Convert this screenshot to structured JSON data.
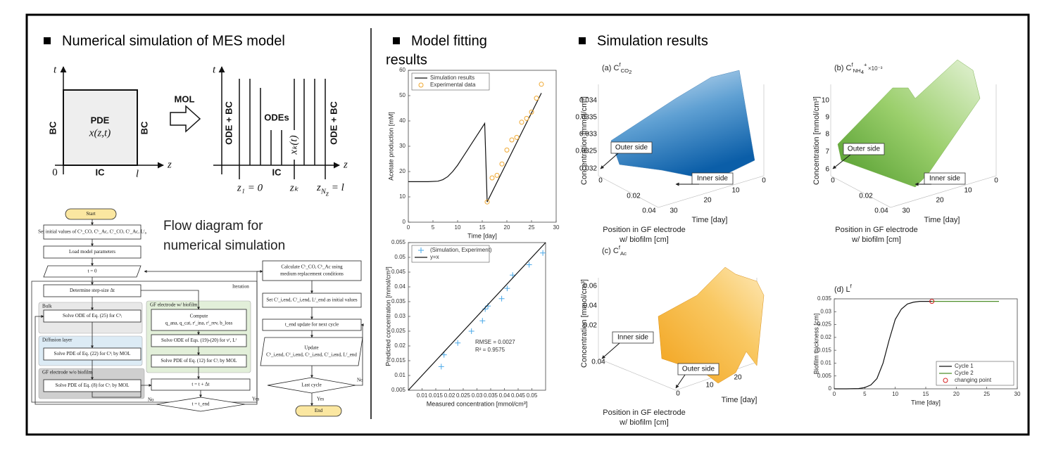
{
  "sections": {
    "simulation": {
      "title": "Numerical simulation of MES model"
    },
    "fitting": {
      "title_lines": [
        "Model fitting",
        "results"
      ]
    },
    "results": {
      "title": "Simulation results"
    }
  },
  "mol_diagram": {
    "left": {
      "t": "t",
      "z": "z",
      "pde": "PDE",
      "x": "x(z,t)",
      "bc_left": "BC",
      "bc_right": "BC",
      "ic": "IC",
      "zero": "0",
      "l": "l"
    },
    "arrow": "MOL",
    "right": {
      "t": "t",
      "z": "z",
      "ode_bc_left": "ODE + BC",
      "ode_bc_right": "ODE + BC",
      "odes": "ODEs",
      "xk": "xₖ(t)",
      "ic": "IC",
      "z1": "z₁ = 0",
      "zk": "zₖ",
      "zn": [
        {
          "t": "z"
        },
        {
          "t": "N",
          "v": "sub"
        },
        {
          "t": "z",
          "v": "sub2"
        },
        {
          "t": " = l"
        }
      ]
    }
  },
  "flow_diagram": {
    "title_lines": [
      "Flow diagram for",
      "numerical simulation"
    ],
    "nodes": [
      [
        "Start"
      ],
      [
        "Set initial values of Cᵇ_CO, Cᵇ_Ac, Cᶠ_CO, Cᶠ_Ac, Lᶠ₀"
      ],
      [
        "Load model parameters"
      ],
      [
        "t = 0"
      ],
      [
        "Determine step-size Δt"
      ],
      [
        "Solve ODE of Eq. (25) for Cᵇᵢ"
      ],
      [
        "Solve PDE of Eq. (22) for Cᵈᵢ by MOL"
      ],
      [
        "Solve PDE of Eq. (8) for Cᵉᵢ by MOL"
      ],
      [
        "Compute",
        "q_ana, q_cat, rᶠ_ina, rᶠ_rev, b_loss"
      ],
      [
        "Solve ODE of Eqs. (19)-(20) for vᶠ, Lᶠ"
      ],
      [
        "Solve PDE of Eq. (12) for Cᶠᵢ by MOL"
      ],
      [
        "t = t + Δt"
      ],
      [
        "t = t_end"
      ],
      [
        "Calculate Cᵇ_CO, Cᵇ_Ac using",
        "medium replacement conditions"
      ],
      [
        "Set Cᶠ_i,end, Cᶠ_i,end, Lᶠ_end as initial values"
      ],
      [
        "t_end update for next cycle"
      ],
      [
        "Update",
        "Cᵇ_i,end, Cᵈ_i,end, Cᵉ_i,end, Cᶠ_i,end, Lᶠ_end"
      ],
      [
        "Last cycle"
      ],
      [
        "End"
      ]
    ],
    "groups": [
      "Bulk",
      "Diffusion layer",
      "GF electrode w/o biofilm",
      "GF electrode w/ biofilm",
      "Iteration"
    ],
    "branches": [
      "No",
      "Yes",
      "No",
      "Yes"
    ]
  },
  "surface_panels": [
    {
      "label": [
        {
          "t": "(a) C"
        },
        {
          "t": "f",
          "v": "sup"
        },
        {
          "t": "CO",
          "v": "sub"
        },
        {
          "t": "2",
          "v": "sub2"
        }
      ],
      "z_label": "Concentration [mmol/cm³]",
      "z_ticks": [
        "0.034",
        "0.0335",
        "0.033",
        "0.0325",
        "0.032"
      ],
      "position_ticks": [
        "0",
        "0.02",
        "0.04"
      ],
      "time_ticks": [
        "30",
        "20",
        "10",
        "0"
      ],
      "time_label": "Time [day]",
      "position_label": [
        "Position in GF electrode",
        "w/ biofilm [cm]"
      ],
      "callouts": [
        "Outer side",
        "Inner side"
      ]
    },
    {
      "label": [
        {
          "t": "(b) C"
        },
        {
          "t": "f",
          "v": "sup"
        },
        {
          "t": "NH",
          "v": "sub"
        },
        {
          "t": "4",
          "v": "sub2"
        },
        {
          "t": "+",
          "v": "sup"
        }
      ],
      "exponent": "×10⁻³",
      "z_label": "Concentration [mmol/cm³]",
      "z_ticks": [
        "10",
        "9",
        "8",
        "7",
        "6"
      ],
      "position_ticks": [
        "0",
        "0.02",
        "0.04"
      ],
      "time_ticks": [
        "30",
        "20",
        "10",
        "0"
      ],
      "time_label": "Time [day]",
      "position_label": [
        "Position in GF electrode",
        "w/ biofilm [cm]"
      ],
      "callouts": [
        "Outer side",
        "Inner side"
      ]
    },
    {
      "label": [
        {
          "t": "(c) C"
        },
        {
          "t": "f",
          "v": "sup"
        },
        {
          "t": "Ac",
          "v": "sub"
        }
      ],
      "z_label": "Concentration [mmol/cm³]",
      "z_ticks": [
        "0.06",
        "0.04",
        "0.02"
      ],
      "position_ticks": [
        "0.04",
        "0"
      ],
      "time_ticks": [
        "10",
        "20"
      ],
      "time_label": "Time [day]",
      "position_label": [
        "Position in GF electrode",
        "w/ biofilm [cm]"
      ],
      "callouts": [
        "Inner side",
        "Outer side"
      ]
    }
  ],
  "chart_data": [
    {
      "type": "line",
      "xlabel": "Time [day]",
      "ylabel": "Acetate production [mM]",
      "xlim": [
        0,
        30
      ],
      "xticks": [
        0,
        5,
        10,
        15,
        20,
        25,
        30
      ],
      "ylim": [
        0,
        60
      ],
      "yticks": [
        0,
        10,
        20,
        30,
        40,
        50,
        60
      ],
      "legend": "upper left",
      "series": [
        {
          "name": "Simulation results",
          "color": "#111111",
          "mode": "line",
          "x": [
            0,
            2,
            4,
            6,
            7,
            8,
            9,
            10,
            11,
            12,
            13,
            14,
            15,
            15.5,
            16,
            27
          ],
          "values": [
            16,
            16,
            16,
            16.2,
            16.8,
            18,
            20,
            22.5,
            25.5,
            28.5,
            31.5,
            34.5,
            37.5,
            39,
            8,
            51
          ]
        },
        {
          "name": "Experimental data",
          "color": "#f0a830",
          "mode": "markers",
          "marker": "o",
          "x": [
            16,
            17,
            18,
            19,
            20,
            21,
            22,
            23,
            24,
            25,
            26,
            27
          ],
          "values": [
            8,
            17.5,
            18.5,
            23,
            28.5,
            32.5,
            33.5,
            39.5,
            41,
            43.5,
            49,
            54.5
          ]
        }
      ]
    },
    {
      "type": "scatter",
      "xlabel": "Measured concentration [mmol/cm³]",
      "ylabel": "Predicted concentration [mmol/cm³]",
      "xlim": [
        0.005,
        0.055
      ],
      "xticks": [
        0.01,
        0.015,
        0.02,
        0.025,
        0.03,
        0.035,
        0.04,
        0.045,
        0.05
      ],
      "ylim": [
        0.005,
        0.055
      ],
      "yticks": [
        0.005,
        0.01,
        0.015,
        0.02,
        0.025,
        0.03,
        0.035,
        0.04,
        0.045,
        0.05,
        0.055
      ],
      "legend": "upper left",
      "annotations": [
        "RMSE = 0.0027",
        "R² = 0.9575"
      ],
      "series": [
        {
          "name": "(Simulation, Experiment)",
          "color": "#4aa8e8",
          "mode": "markers",
          "marker": "+",
          "x": [
            0.017,
            0.018,
            0.023,
            0.028,
            0.032,
            0.033,
            0.034,
            0.039,
            0.041,
            0.043,
            0.049,
            0.054
          ],
          "values": [
            0.013,
            0.017,
            0.021,
            0.025,
            0.0285,
            0.0325,
            0.0335,
            0.036,
            0.0395,
            0.044,
            0.0475,
            0.0515
          ]
        },
        {
          "name": "y=x",
          "color": "#111111",
          "mode": "line",
          "x": [
            0.005,
            0.055
          ],
          "values": [
            0.005,
            0.055
          ]
        }
      ]
    },
    {
      "type": "line",
      "panel_label": [
        {
          "t": "(d) L"
        },
        {
          "t": "f",
          "v": "sup"
        }
      ],
      "xlabel": "Time [day]",
      "ylabel": "Biofilm thickness [cm]",
      "xlim": [
        0,
        30
      ],
      "xticks": [
        0,
        5,
        10,
        15,
        20,
        25,
        30
      ],
      "ylim": [
        0,
        0.035
      ],
      "yticks": [
        0,
        0.005,
        0.01,
        0.015,
        0.02,
        0.025,
        0.03,
        0.035
      ],
      "legend": "lower right",
      "series": [
        {
          "name": "Cycle 1",
          "color": "#111111",
          "mode": "line",
          "x": [
            0,
            2,
            4,
            5,
            6,
            7,
            8,
            9,
            10,
            11,
            12,
            13,
            14,
            15,
            16
          ],
          "values": [
            0,
            0,
            0.0001,
            0.0005,
            0.0015,
            0.004,
            0.01,
            0.019,
            0.027,
            0.031,
            0.033,
            0.0337,
            0.034,
            0.034,
            0.034
          ]
        },
        {
          "name": "Cycle 2",
          "color": "#4e8f2a",
          "mode": "line",
          "x": [
            16,
            27
          ],
          "values": [
            0.034,
            0.034
          ]
        },
        {
          "name": "changing point",
          "color": "#d62020",
          "mode": "markers",
          "marker": "o",
          "x": [
            16
          ],
          "values": [
            0.034
          ]
        }
      ]
    }
  ]
}
